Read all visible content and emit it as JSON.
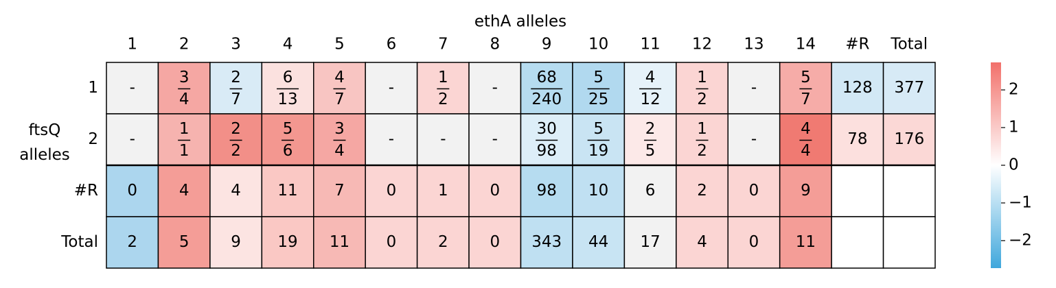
{
  "chart_data": {
    "type": "heatmap",
    "title": "ethA alleles",
    "ylabel": "ftsQ alleles",
    "columns": [
      "1",
      "2",
      "3",
      "4",
      "5",
      "6",
      "7",
      "8",
      "9",
      "10",
      "11",
      "12",
      "13",
      "14",
      "#R",
      "Total"
    ],
    "rows": [
      "1",
      "2",
      "#R",
      "Total"
    ],
    "cells": [
      [
        {
          "value": "-",
          "color": "#f2f2f2"
        },
        {
          "num": 3,
          "den": 4,
          "color": "#f5a7a3"
        },
        {
          "num": 2,
          "den": 7,
          "color": "#d9ebf6"
        },
        {
          "num": 6,
          "den": 13,
          "color": "#fbe1df"
        },
        {
          "num": 4,
          "den": 7,
          "color": "#f8c5c2"
        },
        {
          "value": "-",
          "color": "#f2f2f2"
        },
        {
          "num": 1,
          "den": 2,
          "color": "#fbd5d3"
        },
        {
          "value": "-",
          "color": "#f2f2f2"
        },
        {
          "num": 68,
          "den": 240,
          "color": "#b6dcf0"
        },
        {
          "num": 5,
          "den": 25,
          "color": "#b1d9ef"
        },
        {
          "num": 4,
          "den": 12,
          "color": "#e6f2f9"
        },
        {
          "num": 1,
          "den": 2,
          "color": "#fbd5d3"
        },
        {
          "value": "-",
          "color": "#f2f2f2"
        },
        {
          "num": 5,
          "den": 7,
          "color": "#f6aca8"
        },
        {
          "value": 128,
          "color": "#d2e8f5"
        },
        {
          "value": 377,
          "color": "#d7eaf6"
        }
      ],
      [
        {
          "value": "-",
          "color": "#f2f2f2"
        },
        {
          "num": 1,
          "den": 1,
          "color": "#f6b3af"
        },
        {
          "num": 2,
          "den": 2,
          "color": "#f28f88"
        },
        {
          "num": 5,
          "den": 6,
          "color": "#f39790"
        },
        {
          "num": 3,
          "den": 4,
          "color": "#f5a7a3"
        },
        {
          "value": "-",
          "color": "#f2f2f2"
        },
        {
          "value": "-",
          "color": "#f2f2f2"
        },
        {
          "value": "-",
          "color": "#f2f2f2"
        },
        {
          "num": 30,
          "den": 98,
          "color": "#ddeef8"
        },
        {
          "num": 5,
          "den": 19,
          "color": "#c9e4f3"
        },
        {
          "num": 2,
          "den": 5,
          "color": "#fce9e8"
        },
        {
          "num": 1,
          "den": 2,
          "color": "#fbd5d3"
        },
        {
          "value": "-",
          "color": "#f2f2f2"
        },
        {
          "num": 4,
          "den": 4,
          "color": "#f07a72"
        },
        {
          "value": 78,
          "color": "#fce0de"
        },
        {
          "value": 176,
          "color": "#fbd8d6"
        }
      ],
      [
        {
          "value": 0,
          "color": "#acd6ee"
        },
        {
          "value": 4,
          "color": "#f49d97"
        },
        {
          "value": 4,
          "color": "#fce4e2"
        },
        {
          "value": 11,
          "color": "#fac8c4"
        },
        {
          "value": 7,
          "color": "#f7b9b5"
        },
        {
          "value": 0,
          "color": "#fbd5d3"
        },
        {
          "value": 1,
          "color": "#fbd5d3"
        },
        {
          "value": 0,
          "color": "#fbd5d3"
        },
        {
          "value": 98,
          "color": "#b6dcf0"
        },
        {
          "value": 10,
          "color": "#c0e0f2"
        },
        {
          "value": 6,
          "color": "#f2f2f2"
        },
        {
          "value": 2,
          "color": "#fbd5d3"
        },
        {
          "value": 0,
          "color": "#fbd5d3"
        },
        {
          "value": 9,
          "color": "#f49d97"
        },
        {
          "color": "#ffffff"
        },
        {
          "color": "#ffffff"
        }
      ],
      [
        {
          "value": 2,
          "color": "#acd6ee"
        },
        {
          "value": 5,
          "color": "#f49d97"
        },
        {
          "value": 9,
          "color": "#fce4e2"
        },
        {
          "value": 19,
          "color": "#fac8c4"
        },
        {
          "value": 11,
          "color": "#f7b9b5"
        },
        {
          "value": 0,
          "color": "#fbd5d3"
        },
        {
          "value": 2,
          "color": "#fbd5d3"
        },
        {
          "value": 0,
          "color": "#fbd5d3"
        },
        {
          "value": 343,
          "color": "#bfe0f2"
        },
        {
          "value": 44,
          "color": "#c8e4f3"
        },
        {
          "value": 17,
          "color": "#f2f2f2"
        },
        {
          "value": 4,
          "color": "#fbd5d3"
        },
        {
          "value": 0,
          "color": "#fbd5d3"
        },
        {
          "value": 11,
          "color": "#f49d97"
        },
        {
          "color": "#ffffff"
        },
        {
          "color": "#ffffff"
        }
      ]
    ],
    "colorbar": {
      "lim": [
        -2.73,
        2.73
      ],
      "colors": [
        "#3fa7dc",
        "#ffffff",
        "#f2706a"
      ],
      "ticks": [
        {
          "value": -2,
          "label": "−2"
        },
        {
          "value": -1,
          "label": "−1"
        },
        0,
        1,
        2
      ]
    }
  }
}
